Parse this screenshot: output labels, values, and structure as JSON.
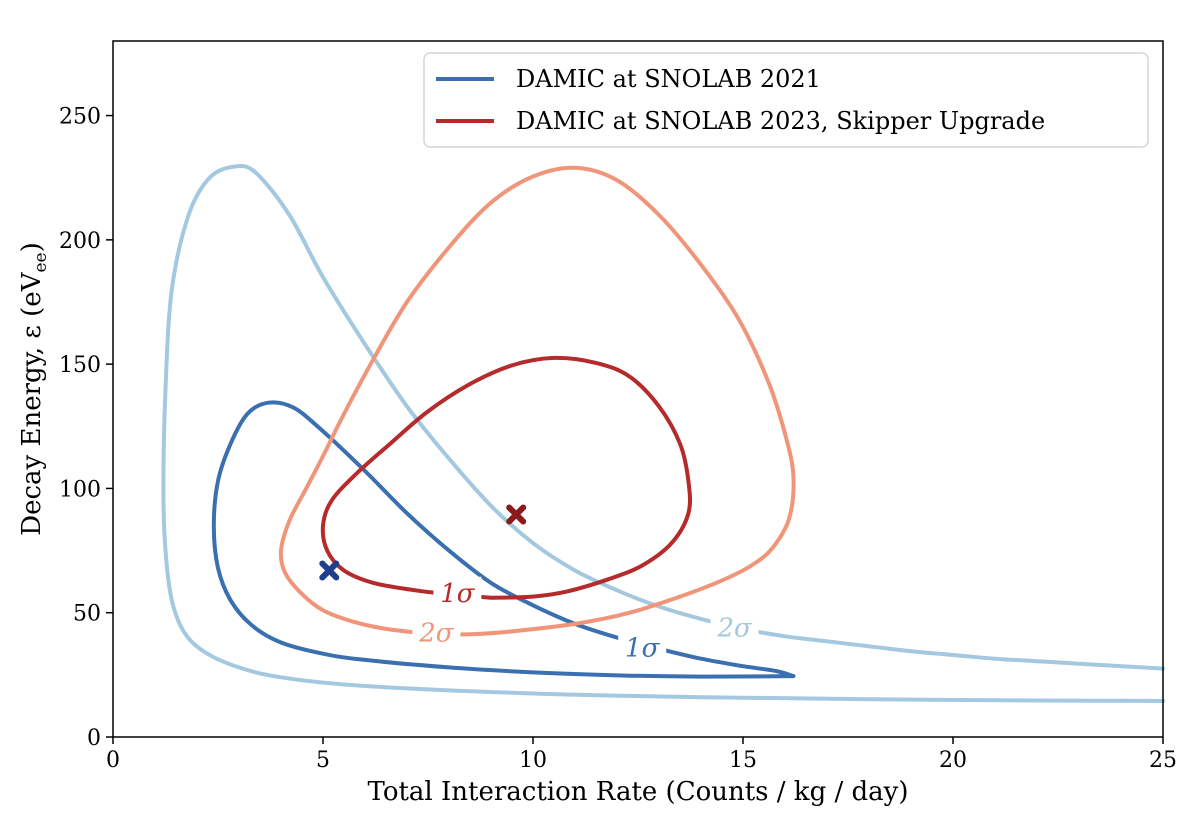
{
  "chart_data": {
    "type": "line",
    "xlabel": "Total Interaction Rate (Counts / kg / day)",
    "ylabel_main": "Decay Energy, ε (eV",
    "ylabel_sub": "ee",
    "ylabel_close": ")",
    "xlim": [
      0,
      25
    ],
    "ylim": [
      0,
      280
    ],
    "xticks": [
      0,
      5,
      10,
      15,
      20,
      25
    ],
    "xtick_labels": [
      "0",
      "5",
      "10",
      "15",
      "20",
      "25"
    ],
    "yticks": [
      0,
      50,
      100,
      150,
      200,
      250
    ],
    "ytick_labels": [
      "0",
      "50",
      "100",
      "150",
      "200",
      "250"
    ],
    "grid": false,
    "legend_position": "top-right",
    "legend": [
      {
        "label": "DAMIC at SNOLAB 2021",
        "color": "#3a6fb0"
      },
      {
        "label": "DAMIC at SNOLAB 2023, Skipper Upgrade",
        "color": "#b52a2a"
      }
    ],
    "series": [
      {
        "name": "DAMIC at SNOLAB 2021",
        "contour": "1σ",
        "color": "#3a6fb0",
        "points": [
          [
            16.2,
            24.5
          ],
          [
            14,
            24.3
          ],
          [
            12,
            24.8
          ],
          [
            10,
            26
          ],
          [
            8,
            28
          ],
          [
            6,
            31
          ],
          [
            5,
            33.5
          ],
          [
            4,
            38
          ],
          [
            3.3,
            45
          ],
          [
            2.8,
            55
          ],
          [
            2.5,
            68
          ],
          [
            2.4,
            85
          ],
          [
            2.5,
            103
          ],
          [
            2.8,
            118
          ],
          [
            3.2,
            130
          ],
          [
            3.7,
            134.5
          ],
          [
            4.3,
            132.5
          ],
          [
            5,
            123
          ],
          [
            6,
            107
          ],
          [
            7,
            90
          ],
          [
            8,
            75
          ],
          [
            9,
            62
          ],
          [
            10,
            53
          ],
          [
            11,
            45.5
          ],
          [
            12,
            40
          ],
          [
            13,
            35.5
          ],
          [
            14,
            31.5
          ],
          [
            15,
            28.5
          ],
          [
            15.8,
            26.5
          ],
          [
            16.2,
            24.5
          ]
        ]
      },
      {
        "name": "DAMIC at SNOLAB 2021",
        "contour": "2σ",
        "color": "#a3c8df",
        "points": [
          [
            25,
            14.5
          ],
          [
            22,
            14.7
          ],
          [
            18,
            15.2
          ],
          [
            14,
            16
          ],
          [
            10,
            17.5
          ],
          [
            6,
            20.5
          ],
          [
            4,
            24
          ],
          [
            3,
            28
          ],
          [
            2.2,
            34
          ],
          [
            1.7,
            42
          ],
          [
            1.4,
            55
          ],
          [
            1.25,
            75
          ],
          [
            1.2,
            100
          ],
          [
            1.25,
            140
          ],
          [
            1.4,
            180
          ],
          [
            1.8,
            210
          ],
          [
            2.3,
            225
          ],
          [
            2.9,
            229.5
          ],
          [
            3.4,
            227
          ],
          [
            4.2,
            210
          ],
          [
            5,
            185
          ],
          [
            6,
            158
          ],
          [
            7,
            133
          ],
          [
            8,
            112
          ],
          [
            9,
            93
          ],
          [
            10,
            78
          ],
          [
            11,
            67
          ],
          [
            12,
            59
          ],
          [
            13,
            52.5
          ],
          [
            14,
            47.5
          ],
          [
            15,
            43.5
          ],
          [
            16,
            40.5
          ],
          [
            17,
            38.5
          ],
          [
            18,
            36.5
          ],
          [
            19,
            34.5
          ],
          [
            20,
            33
          ],
          [
            21,
            31.5
          ],
          [
            22,
            30.5
          ],
          [
            23,
            29.5
          ],
          [
            25,
            27.5
          ]
        ]
      },
      {
        "name": "DAMIC at SNOLAB 2023, Skipper Upgrade",
        "contour": "1σ",
        "color": "#b52a2a",
        "points": [
          [
            9,
            56
          ],
          [
            8,
            57.5
          ],
          [
            7.2,
            59
          ],
          [
            6.2,
            62
          ],
          [
            5.5,
            67
          ],
          [
            5.1,
            75
          ],
          [
            5,
            85
          ],
          [
            5.2,
            95
          ],
          [
            5.8,
            106
          ],
          [
            6.6,
            118
          ],
          [
            7.5,
            131
          ],
          [
            8.5,
            142
          ],
          [
            9.5,
            149.5
          ],
          [
            10.5,
            152.5
          ],
          [
            11.5,
            150.5
          ],
          [
            12.3,
            145
          ],
          [
            13,
            133
          ],
          [
            13.5,
            118
          ],
          [
            13.7,
            103
          ],
          [
            13.7,
            90
          ],
          [
            13.3,
            78
          ],
          [
            12.6,
            69
          ],
          [
            11.8,
            63.5
          ],
          [
            10.8,
            58.5
          ],
          [
            10,
            56.5
          ],
          [
            9,
            56
          ]
        ]
      },
      {
        "name": "DAMIC at SNOLAB 2023, Skipper Upgrade",
        "contour": "2σ",
        "color": "#f0957a",
        "points": [
          [
            7.5,
            41.5
          ],
          [
            6.5,
            43.5
          ],
          [
            5.7,
            46.5
          ],
          [
            5,
            51
          ],
          [
            4.5,
            57.5
          ],
          [
            4.1,
            66
          ],
          [
            4,
            75
          ],
          [
            4.2,
            87
          ],
          [
            4.6,
            100
          ],
          [
            5,
            113
          ],
          [
            5.5,
            130
          ],
          [
            6.2,
            152
          ],
          [
            7,
            175
          ],
          [
            8,
            197
          ],
          [
            9,
            215
          ],
          [
            10,
            225.5
          ],
          [
            11,
            229
          ],
          [
            12,
            224
          ],
          [
            13,
            210
          ],
          [
            14,
            190
          ],
          [
            14.9,
            168
          ],
          [
            15.6,
            143
          ],
          [
            16,
            122
          ],
          [
            16.2,
            105
          ],
          [
            16.1,
            88
          ],
          [
            15.7,
            76
          ],
          [
            15.2,
            69
          ],
          [
            14.5,
            63
          ],
          [
            13.5,
            56.5
          ],
          [
            12.3,
            50
          ],
          [
            11,
            45.5
          ],
          [
            9.5,
            42.5
          ],
          [
            8.5,
            41.3
          ],
          [
            7.5,
            41.5
          ]
        ]
      }
    ],
    "best_fit_points": [
      {
        "name": "DAMIC at SNOLAB 2021",
        "x": 5.15,
        "y": 67,
        "color": "#1f3f8c",
        "marker": "X"
      },
      {
        "name": "DAMIC at SNOLAB 2023, Skipper Upgrade",
        "x": 9.6,
        "y": 89.5,
        "color": "#8b1a1a",
        "marker": "X"
      }
    ],
    "contour_labels": [
      {
        "text": "1σ",
        "x": 8.2,
        "y": 58,
        "color": "#b52a2a"
      },
      {
        "text": "2σ",
        "x": 7.7,
        "y": 42,
        "color": "#f0957a"
      },
      {
        "text": "1σ",
        "x": 12.6,
        "y": 36,
        "color": "#3a6fb0"
      },
      {
        "text": "2σ",
        "x": 14.8,
        "y": 44,
        "color": "#a3c8df"
      }
    ]
  }
}
